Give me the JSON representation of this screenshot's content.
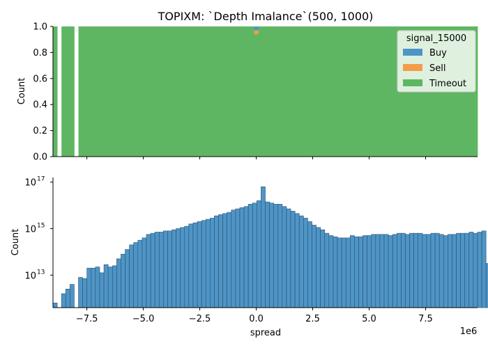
{
  "chart_data": [
    {
      "type": "bar",
      "subtype": "stacked-normalized-histogram",
      "title": "TOPIXM: `Depth Imalance`(500, 1000)",
      "xlabel": "",
      "ylabel": "Count",
      "xlim": [
        -9000000,
        9800000
      ],
      "ylim": [
        0,
        1
      ],
      "yticks": [
        "0.0",
        "0.2",
        "0.4",
        "0.6",
        "0.8",
        "1.0"
      ],
      "legend": {
        "title": "signal_15000",
        "placement": "top-right",
        "entries": [
          {
            "label": "Buy",
            "color": "#4e95c7"
          },
          {
            "label": "Sell",
            "color": "#f39c4a"
          },
          {
            "label": "Timeout",
            "color": "#5fb662"
          }
        ]
      },
      "bin_width": 188000,
      "empty_bins_x": [
        -8812000,
        -8060000
      ],
      "series": [
        {
          "name": "Buy",
          "values": [
            {
              "x": -94000,
              "fraction": 0.03
            }
          ]
        },
        {
          "name": "Sell",
          "values": [
            {
              "x": -94000,
              "fraction": 0.03
            }
          ]
        },
        {
          "name": "Timeout",
          "values": [
            {
              "x_range": [
                -9000000,
                9800000
              ],
              "fraction": 0.94,
              "note_fraction_elsewhere": 1.0
            }
          ]
        }
      ]
    },
    {
      "type": "bar",
      "subtype": "histogram",
      "xlabel": "spread",
      "ylabel": "Count",
      "yscale": "log",
      "xlim": [
        -9000000,
        9800000
      ],
      "ylim_log10": [
        11.6,
        17.2
      ],
      "xticks": [
        "−7.5",
        "−5.0",
        "−2.5",
        "0.0",
        "2.5",
        "5.0",
        "7.5"
      ],
      "xtick_values": [
        -7500000,
        -5000000,
        -2500000,
        0,
        2500000,
        5000000,
        7500000
      ],
      "x_offset_label": "1e6",
      "yticks": [
        {
          "base": "10",
          "exp": "13"
        },
        {
          "base": "10",
          "exp": "15"
        },
        {
          "base": "10",
          "exp": "17"
        }
      ],
      "ytick_log10": [
        13,
        15,
        17
      ],
      "color": "#4e95c7",
      "bin_start": -9000000,
      "bin_width": 188000,
      "log10_counts": [
        11.8,
        0,
        12.2,
        12.4,
        12.6,
        0,
        12.9,
        12.85,
        13.3,
        13.3,
        13.35,
        13.1,
        13.45,
        13.35,
        13.4,
        13.7,
        13.9,
        14.1,
        14.3,
        14.4,
        14.5,
        14.6,
        14.75,
        14.8,
        14.85,
        14.85,
        14.9,
        14.9,
        14.95,
        15.0,
        15.05,
        15.1,
        15.2,
        15.25,
        15.3,
        15.35,
        15.4,
        15.45,
        15.55,
        15.6,
        15.65,
        15.7,
        15.8,
        15.85,
        15.9,
        15.95,
        16.05,
        16.1,
        16.2,
        16.8,
        16.15,
        16.1,
        16.05,
        16.05,
        15.95,
        15.85,
        15.75,
        15.65,
        15.55,
        15.45,
        15.3,
        15.15,
        15.05,
        14.95,
        14.8,
        14.7,
        14.65,
        14.6,
        14.6,
        14.6,
        14.7,
        14.65,
        14.65,
        14.7,
        14.7,
        14.75,
        14.75,
        14.75,
        14.75,
        14.7,
        14.75,
        14.8,
        14.8,
        14.75,
        14.8,
        14.8,
        14.8,
        14.75,
        14.75,
        14.8,
        14.8,
        14.75,
        14.7,
        14.75,
        14.75,
        14.8,
        14.8,
        14.8,
        14.85,
        14.8,
        14.85,
        14.9,
        13.5,
        13.4
      ]
    }
  ]
}
